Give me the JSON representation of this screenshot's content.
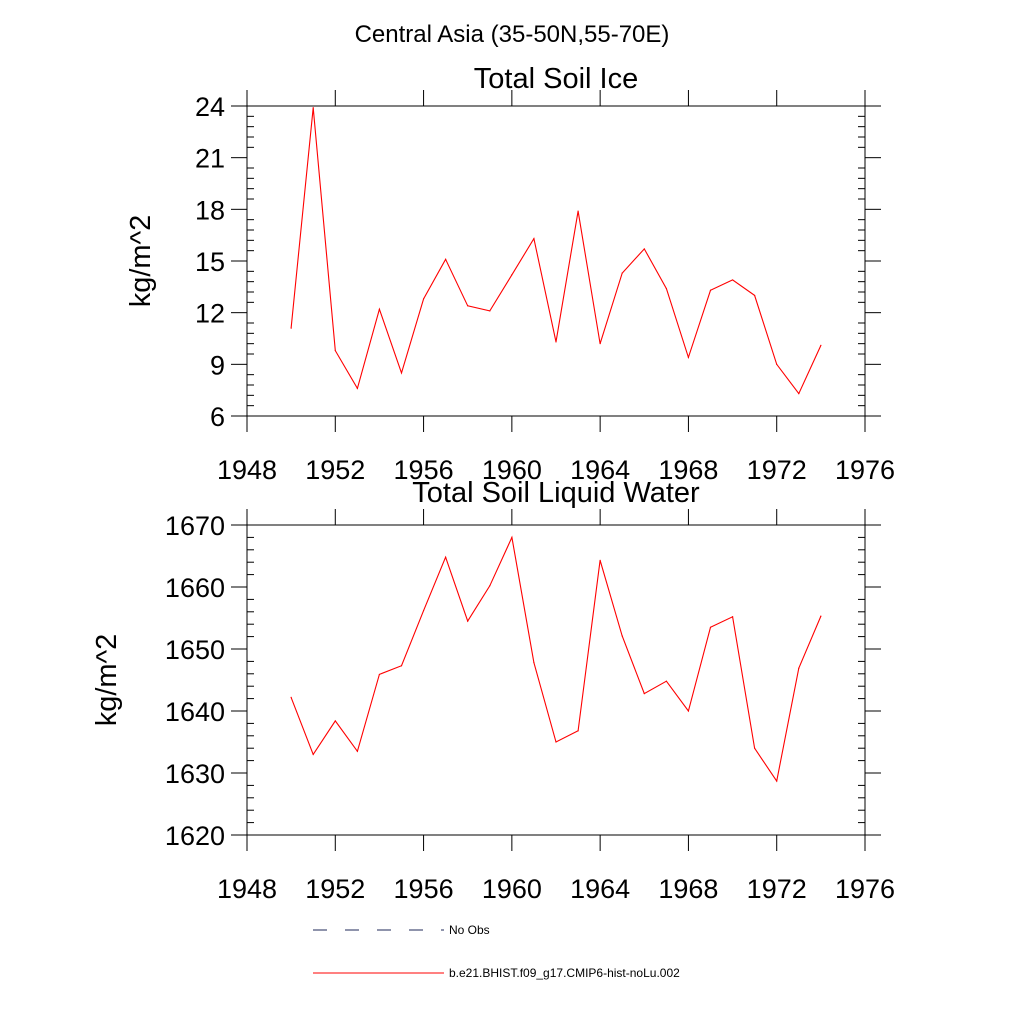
{
  "figure": {
    "title": "Central Asia (35-50N,55-70E)"
  },
  "chart_data": [
    {
      "type": "line",
      "title": "Total Soil Ice",
      "xlabel": "",
      "ylabel": "kg/m^2",
      "xlim": [
        1948,
        1976
      ],
      "ylim": [
        6,
        24
      ],
      "xticks": [
        1948,
        1952,
        1956,
        1960,
        1964,
        1968,
        1972,
        1976
      ],
      "yticks": [
        6,
        9,
        12,
        15,
        18,
        21,
        24
      ],
      "grid": false,
      "series": [
        {
          "name": "b.e21.BHIST.f09_g17.CMIP6-hist-noLu.002",
          "color": "#ff0000",
          "x": [
            1950,
            1951,
            1952,
            1953,
            1954,
            1955,
            1956,
            1957,
            1958,
            1959,
            1960,
            1961,
            1962,
            1963,
            1964,
            1965,
            1966,
            1967,
            1968,
            1969,
            1970,
            1971,
            1972,
            1973,
            1974
          ],
          "values": [
            11.1,
            23.9,
            9.8,
            7.6,
            12.2,
            8.5,
            12.8,
            15.1,
            12.4,
            12.1,
            14.2,
            16.3,
            10.3,
            17.9,
            10.2,
            14.3,
            15.7,
            13.4,
            9.4,
            13.3,
            13.9,
            13.0,
            9.0,
            7.3,
            10.1
          ]
        }
      ]
    },
    {
      "type": "line",
      "title": "Total Soil Liquid Water",
      "xlabel": "",
      "ylabel": "kg/m^2",
      "xlim": [
        1948,
        1976
      ],
      "ylim": [
        1620,
        1670
      ],
      "xticks": [
        1948,
        1952,
        1956,
        1960,
        1964,
        1968,
        1972,
        1976
      ],
      "yticks": [
        1620,
        1630,
        1640,
        1650,
        1660,
        1670
      ],
      "grid": false,
      "series": [
        {
          "name": "b.e21.BHIST.f09_g17.CMIP6-hist-noLu.002",
          "color": "#ff0000",
          "x": [
            1950,
            1951,
            1952,
            1953,
            1954,
            1955,
            1956,
            1957,
            1958,
            1959,
            1960,
            1961,
            1962,
            1963,
            1964,
            1965,
            1966,
            1967,
            1968,
            1969,
            1970,
            1971,
            1972,
            1973,
            1974
          ],
          "values": [
            1642.2,
            1633.0,
            1638.4,
            1633.5,
            1645.9,
            1647.3,
            1656.2,
            1664.8,
            1654.5,
            1660.2,
            1668.0,
            1647.8,
            1635.0,
            1636.8,
            1664.3,
            1652.1,
            1642.8,
            1644.8,
            1640.0,
            1653.5,
            1655.2,
            1634.0,
            1628.7,
            1646.9,
            1655.3
          ]
        }
      ]
    }
  ],
  "legend": {
    "placement": "bottom",
    "items": [
      {
        "label": "No Obs",
        "color": "#1f2a5a",
        "style": "dashed"
      },
      {
        "label": "b.e21.BHIST.f09_g17.CMIP6-hist-noLu.002",
        "color": "#ff0000",
        "style": "solid"
      }
    ]
  }
}
